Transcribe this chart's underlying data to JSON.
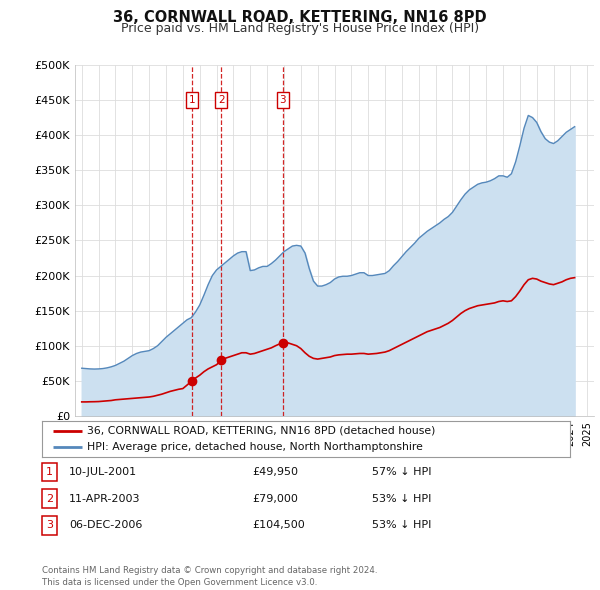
{
  "title": "36, CORNWALL ROAD, KETTERING, NN16 8PD",
  "subtitle": "Price paid vs. HM Land Registry's House Price Index (HPI)",
  "ylim": [
    0,
    500000
  ],
  "yticks": [
    0,
    50000,
    100000,
    150000,
    200000,
    250000,
    300000,
    350000,
    400000,
    450000,
    500000
  ],
  "ytick_labels": [
    "£0",
    "£50K",
    "£100K",
    "£150K",
    "£200K",
    "£250K",
    "£300K",
    "£350K",
    "£400K",
    "£450K",
    "£500K"
  ],
  "xlim_start": 1994.6,
  "xlim_end": 2025.4,
  "xtick_years": [
    1995,
    1996,
    1997,
    1998,
    1999,
    2000,
    2001,
    2002,
    2003,
    2004,
    2005,
    2006,
    2007,
    2008,
    2009,
    2010,
    2011,
    2012,
    2013,
    2014,
    2015,
    2016,
    2017,
    2018,
    2019,
    2020,
    2021,
    2022,
    2023,
    2024,
    2025
  ],
  "background_color": "#ffffff",
  "plot_bg_color": "#ffffff",
  "grid_color": "#dddddd",
  "red_line_color": "#cc0000",
  "blue_line_color": "#5588bb",
  "blue_fill_color": "#cce0f0",
  "sale_points": [
    {
      "year": 2001.53,
      "value": 49950,
      "label": "1"
    },
    {
      "year": 2003.28,
      "value": 79000,
      "label": "2"
    },
    {
      "year": 2006.92,
      "value": 104500,
      "label": "3"
    }
  ],
  "vline_years": [
    2001.53,
    2003.28,
    2006.92
  ],
  "box_labels": [
    {
      "label": "1",
      "year": 2001.53
    },
    {
      "label": "2",
      "year": 2003.28
    },
    {
      "label": "3",
      "year": 2006.92
    }
  ],
  "legend_red_text": "36, CORNWALL ROAD, KETTERING, NN16 8PD (detached house)",
  "legend_blue_text": "HPI: Average price, detached house, North Northamptonshire",
  "table_rows": [
    {
      "num": "1",
      "date": "10-JUL-2001",
      "price": "£49,950",
      "pct": "57% ↓ HPI"
    },
    {
      "num": "2",
      "date": "11-APR-2003",
      "price": "£79,000",
      "pct": "53% ↓ HPI"
    },
    {
      "num": "3",
      "date": "06-DEC-2006",
      "price": "£104,500",
      "pct": "53% ↓ HPI"
    }
  ],
  "footnote": "Contains HM Land Registry data © Crown copyright and database right 2024.\nThis data is licensed under the Open Government Licence v3.0.",
  "title_fontsize": 10.5,
  "subtitle_fontsize": 9
}
